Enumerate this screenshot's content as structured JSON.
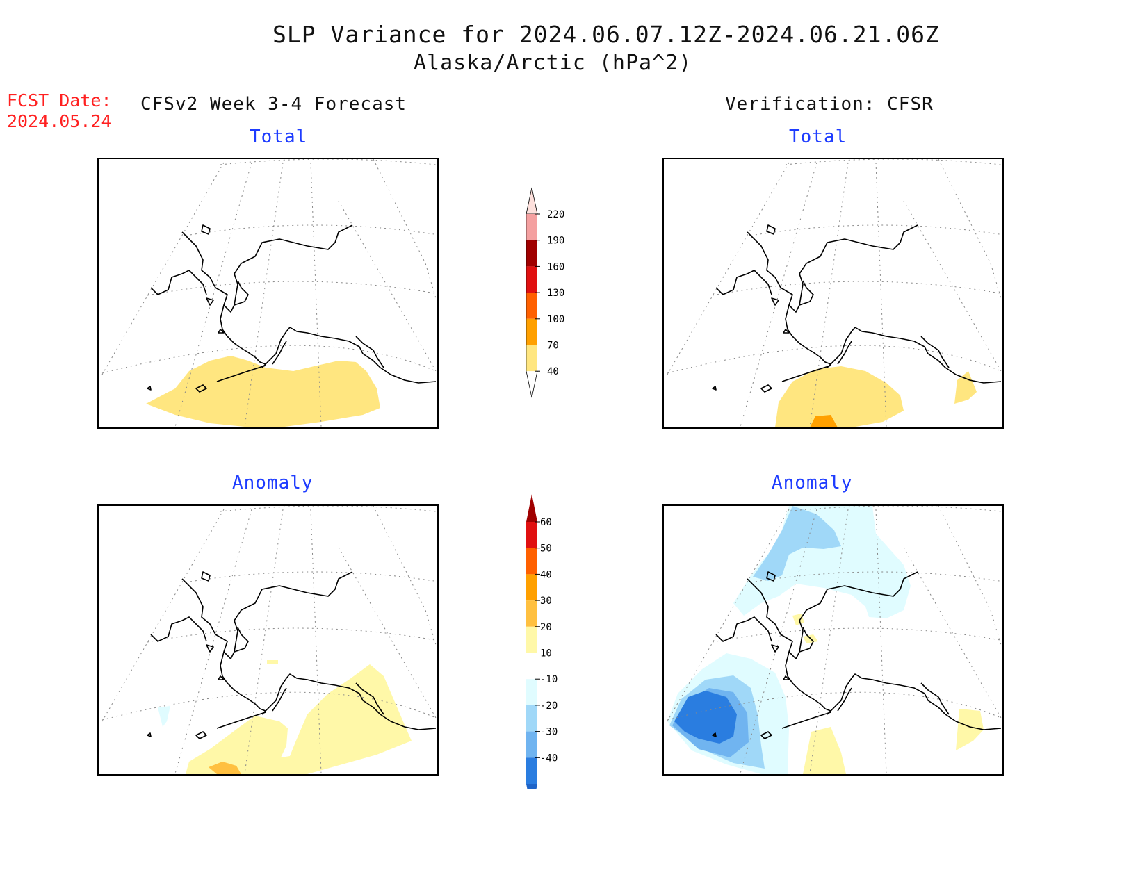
{
  "title": "SLP Variance for 2024.06.07.12Z-2024.06.21.06Z",
  "subtitle": "Alaska/Arctic (hPa^2)",
  "fcst_date_label": "FCST Date:",
  "fcst_date_value": "2024.05.24",
  "forecast_heading": "CFSv2 Week 3-4 Forecast",
  "verification_heading": "Verification: CFSR",
  "panels": {
    "forecast_total": {
      "title": "Total"
    },
    "verification_total": {
      "title": "Total"
    },
    "forecast_anomaly": {
      "title": "Anomaly"
    },
    "verification_anomaly": {
      "title": "Anomaly"
    }
  },
  "colorbar_total": {
    "labels": [
      "220",
      "190",
      "160",
      "130",
      "100",
      "70",
      "40"
    ],
    "colors": [
      "#fde0dc",
      "#f4a0a0",
      "#a00000",
      "#e01010",
      "#ff6000",
      "#ffa000",
      "#ffe680"
    ]
  },
  "colorbar_anomaly": {
    "labels": [
      "60",
      "50",
      "40",
      "30",
      "20",
      "10",
      "-10",
      "-20",
      "-30",
      "-40"
    ],
    "colors": [
      "#a00000",
      "#e01010",
      "#ff6000",
      "#ffa000",
      "#ffc040",
      "#fff8a8",
      "#ffffff",
      "#e0fcff",
      "#a0d8f8",
      "#70b4f0",
      "#2a7de0",
      "#1e64c8"
    ]
  },
  "fill_colors": {
    "yellow_light": "#fff8a8",
    "yellow": "#ffe680",
    "orange": "#ffa000",
    "cyan_light": "#e0fcff",
    "blue_light": "#a0d8f8",
    "blue_mid": "#70b4f0",
    "blue_dark": "#2a7de0"
  }
}
